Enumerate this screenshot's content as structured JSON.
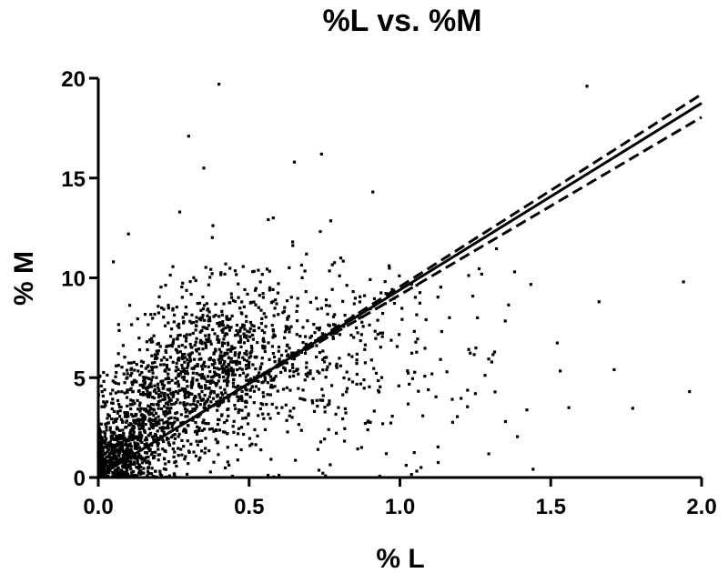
{
  "chart_data": {
    "type": "scatter",
    "title": "%L vs. %M",
    "xlabel": "% L",
    "ylabel": "% M",
    "xlim": [
      0,
      2.0
    ],
    "ylim": [
      0,
      20
    ],
    "xticks": [
      "0.0",
      "0.5",
      "1.0",
      "1.5",
      "2.0"
    ],
    "yticks": [
      "0",
      "5",
      "10",
      "15",
      "20"
    ],
    "grid": false,
    "legend": "none",
    "marker_color": "#000000",
    "regression": {
      "slope": 9.35,
      "intercept": 0.05,
      "ci_upper_end": 19.2,
      "ci_lower_end": 18.05,
      "line_style_fit": "solid",
      "line_style_ci": "dashed"
    },
    "notable_points": [
      [
        0.4,
        19.7
      ],
      [
        1.62,
        19.6
      ],
      [
        0.3,
        17.1
      ],
      [
        0.35,
        15.5
      ],
      [
        0.65,
        15.8
      ],
      [
        0.74,
        16.2
      ],
      [
        0.91,
        14.3
      ],
      [
        1.38,
        10.3
      ],
      [
        1.94,
        9.8
      ],
      [
        1.96,
        4.3
      ],
      [
        1.71,
        5.4
      ],
      [
        1.56,
        3.5
      ],
      [
        1.66,
        8.8
      ],
      [
        1.07,
        0.5
      ],
      [
        1.35,
        2.8
      ],
      [
        1.25,
        4.2
      ],
      [
        0.58,
        13.0
      ],
      [
        0.27,
        13.3
      ],
      [
        0.1,
        12.2
      ],
      [
        0.05,
        10.8
      ]
    ],
    "cloud": [
      {
        "x_mean": 0.05,
        "x_sd": 0.05,
        "y_mean": 0.9,
        "y_sd": 0.8,
        "n": 420
      },
      {
        "x_mean": 0.15,
        "x_sd": 0.08,
        "y_mean": 2.6,
        "y_sd": 1.5,
        "n": 560
      },
      {
        "x_mean": 0.35,
        "x_sd": 0.12,
        "y_mean": 5.4,
        "y_sd": 2.0,
        "n": 700
      },
      {
        "x_mean": 0.55,
        "x_sd": 0.15,
        "y_mean": 6.3,
        "y_sd": 2.3,
        "n": 380
      },
      {
        "x_mean": 0.85,
        "x_sd": 0.18,
        "y_mean": 6.2,
        "y_sd": 2.8,
        "n": 170
      },
      {
        "x_mean": 1.2,
        "x_sd": 0.22,
        "y_mean": 6.0,
        "y_sd": 3.0,
        "n": 50
      }
    ]
  }
}
